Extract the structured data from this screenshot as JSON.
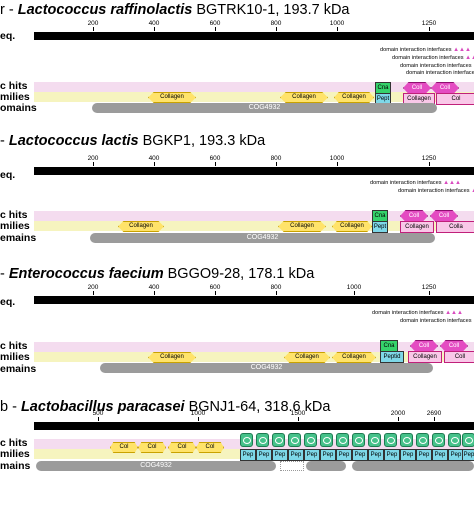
{
  "rows": {
    "seq": "eq.",
    "specific": "c hits",
    "superfamilies": "milies",
    "domains": "omains",
    "domains_p2": "emains",
    "domains_p3": "emains",
    "domains_p4": "mains"
  },
  "domain_interaction_label": "domain interaction interfaces",
  "panels": [
    {
      "prefix": "r - ",
      "organism": "Lactococcus raffinolactis",
      "strain_size": " BGTRK10-1, 193.7 kDa",
      "ticks": [
        "200",
        "400",
        "600",
        "800",
        "1000",
        "1250"
      ],
      "collagen": "Collagen",
      "cog": "COG4932",
      "cna": "Cna",
      "pept": "Pept",
      "coll": "Coll",
      "collagen_box": "Collagen",
      "col_box": "Col"
    },
    {
      "prefix": " - ",
      "organism": "Lactococcus lactis",
      "strain_size": " BGKP1, 193.3 kDa",
      "ticks": [
        "200",
        "400",
        "600",
        "800",
        "1000",
        "1250"
      ],
      "collagen": "Collagen",
      "cog": "COG4932",
      "cna": "Cna",
      "pept": "Pept",
      "coll": "Coll",
      "collagen_box": "Collagen",
      "col_box": "Colla"
    },
    {
      "prefix": " - ",
      "organism": "Enterococcus faecium",
      "strain_size": " BGGO9-28, 178.1 kDa",
      "ticks": [
        "200",
        "400",
        "600",
        "800",
        "1000",
        "1250"
      ],
      "collagen": "Collagen",
      "cog": "COG4932",
      "cna": "Cna",
      "pept": "Peptid",
      "coll": "Coll",
      "collagen_box": "Collagen",
      "col_box": "Coll"
    },
    {
      "prefix": "b - ",
      "organism": "Lactobacillus paracasei",
      "strain_size": " BGNJ1-64, 318.6 kDa",
      "ticks": [
        "500",
        "1000",
        "1500",
        "2000",
        "2690"
      ],
      "collagen": "Col",
      "cog": "COG4932",
      "pep": "Pep"
    }
  ]
}
